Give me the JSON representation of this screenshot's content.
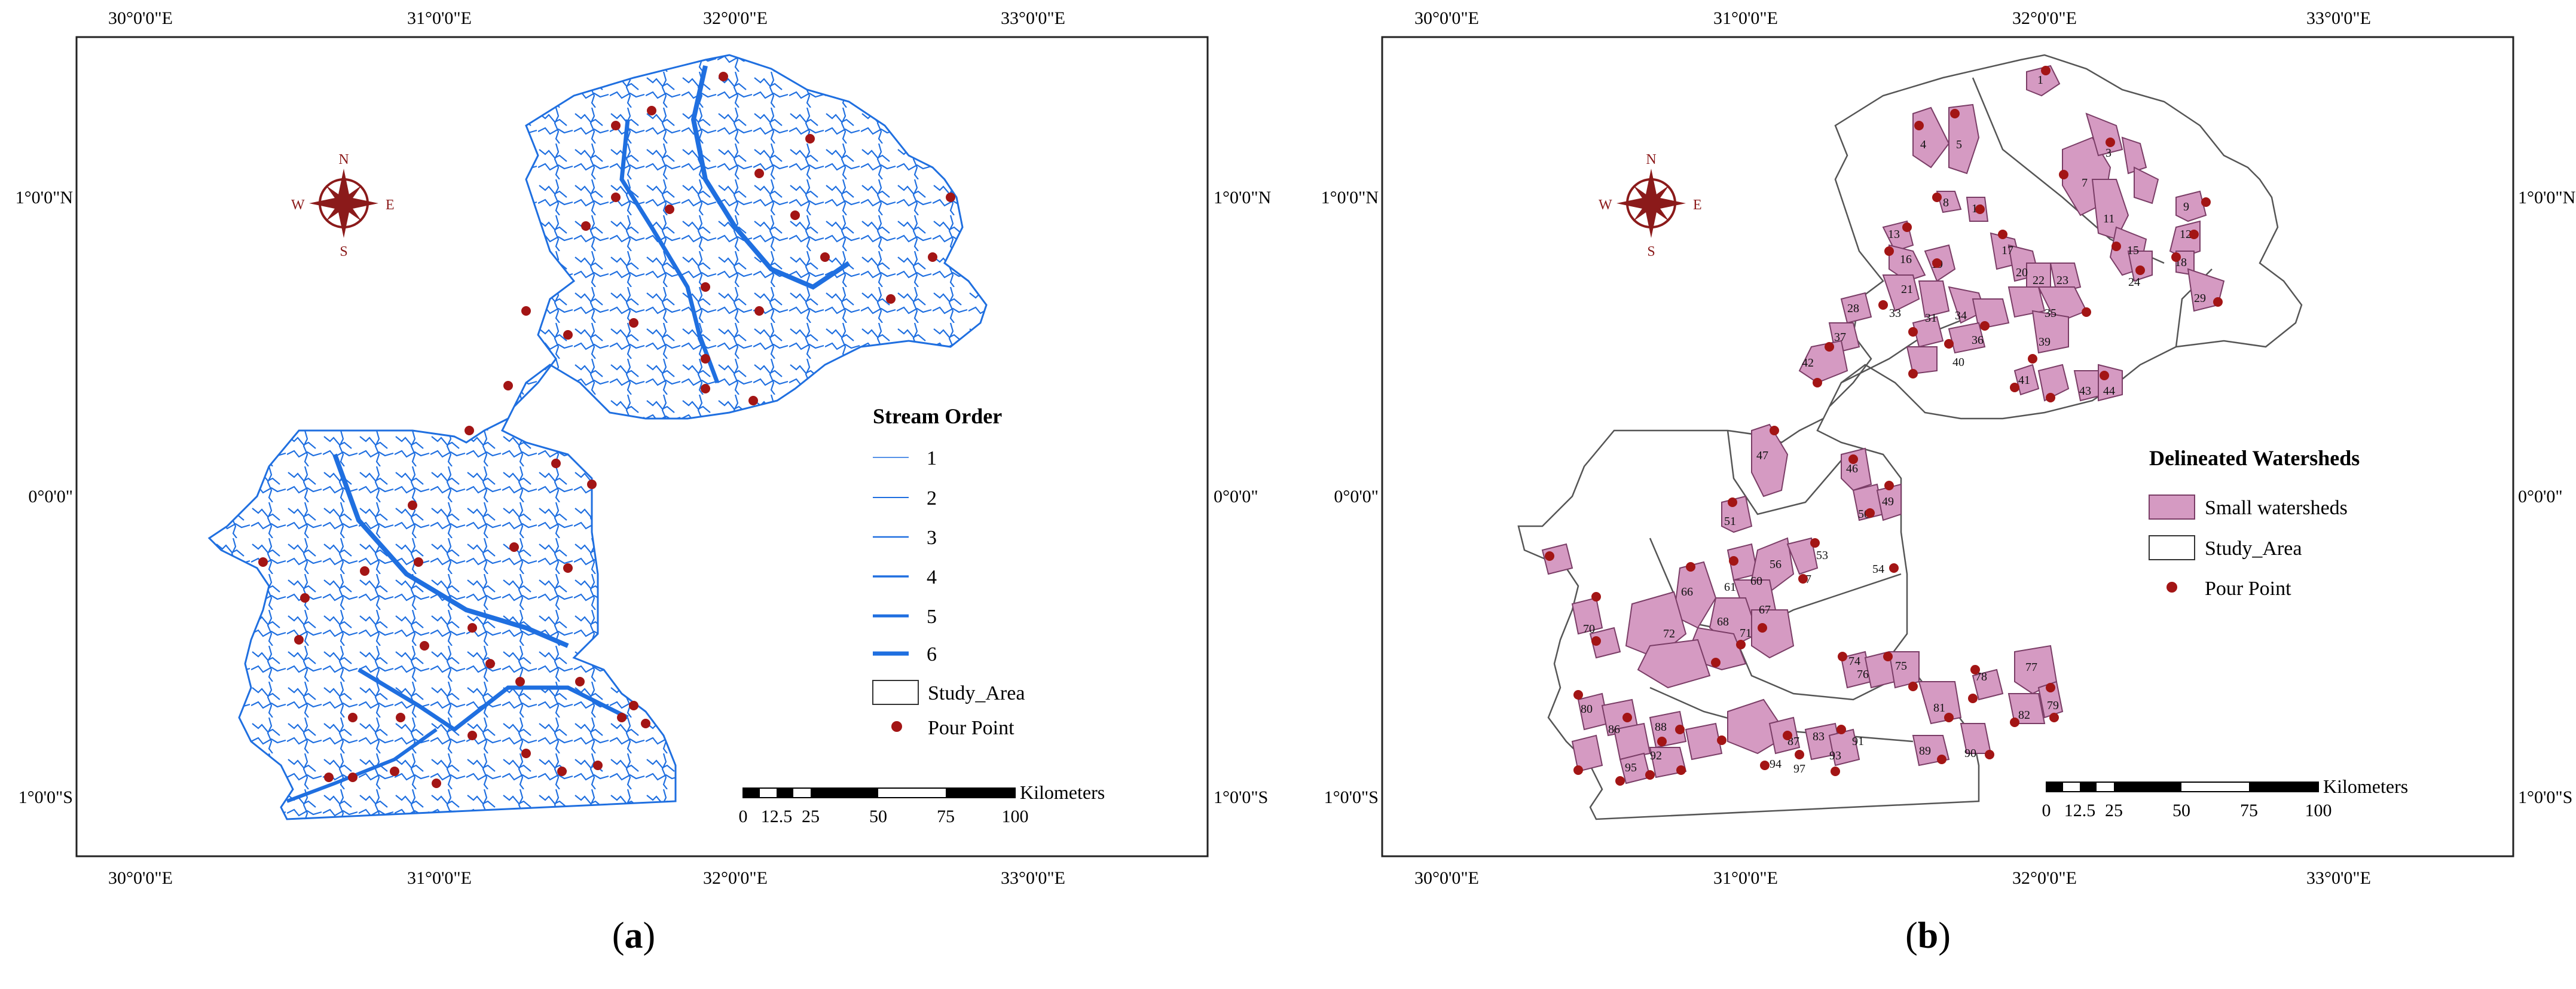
{
  "panel_a": {
    "caption_letter": "a",
    "graticule_top": [
      "30°0'0\"E",
      "31°0'0\"E",
      "32°0'0\"E",
      "33°0'0\"E"
    ],
    "graticule_bottom": [
      "30°0'0\"E",
      "31°0'0\"E",
      "32°0'0\"E",
      "33°0'0\"E"
    ],
    "graticule_left": [
      "1°0'0\"N",
      "0°0'0\"",
      "1°0'0\"S"
    ],
    "graticule_right": [
      "1°0'0\"N",
      "0°0'0\"",
      "1°0'0\"S"
    ],
    "legend": {
      "title": "Stream Order",
      "items": [
        "1",
        "2",
        "3",
        "4",
        "5",
        "6",
        "Study_Area",
        "Pour Point"
      ],
      "stream_color": "#1f6fe0"
    },
    "scale_bar": {
      "ticks": [
        "0",
        "12.5",
        "25",
        "50",
        "75",
        "100"
      ],
      "unit": "Kilometers"
    },
    "compass": {
      "n": "N",
      "s": "S",
      "e": "E",
      "w": "W"
    }
  },
  "panel_b": {
    "caption_letter": "b",
    "graticule_top": [
      "30°0'0\"E",
      "31°0'0\"E",
      "32°0'0\"E",
      "33°0'0\"E"
    ],
    "graticule_bottom": [
      "30°0'0\"E",
      "31°0'0\"E",
      "32°0'0\"E",
      "33°0'0\"E"
    ],
    "graticule_left": [
      "1°0'0\"N",
      "0°0'0\"",
      "1°0'0\"S"
    ],
    "graticule_right": [
      "1°0'0\"N",
      "0°0'0\"",
      "1°0'0\"S"
    ],
    "legend": {
      "title": "Delineated Watersheds",
      "items": [
        "Small watersheds",
        "Study_Area",
        "Pour Point"
      ],
      "watershed_color": "#d59ac2"
    },
    "scale_bar": {
      "ticks": [
        "0",
        "12.5",
        "25",
        "50",
        "75",
        "100"
      ],
      "unit": "Kilometers"
    },
    "compass": {
      "n": "N",
      "s": "S",
      "e": "E",
      "w": "W"
    },
    "watershed_ids": [
      "1",
      "3",
      "4",
      "5",
      "7",
      "8",
      "9",
      "10",
      "11",
      "12",
      "13",
      "15",
      "16",
      "17",
      "18",
      "19",
      "20",
      "21",
      "22",
      "23",
      "24",
      "28",
      "29",
      "31",
      "33",
      "34",
      "35",
      "36",
      "37",
      "39",
      "40",
      "41",
      "42",
      "43",
      "44",
      "46",
      "47",
      "49",
      "50",
      "51",
      "53",
      "54",
      "56",
      "57",
      "60",
      "61",
      "66",
      "67",
      "68",
      "70",
      "71",
      "72",
      "74",
      "75",
      "76",
      "77",
      "78",
      "79",
      "80",
      "81",
      "82",
      "83",
      "86",
      "87",
      "88",
      "89",
      "90",
      "91",
      "92",
      "93",
      "94",
      "95",
      "97"
    ]
  },
  "colors": {
    "pour_point": "#a31515",
    "study_area_outline": "#333333",
    "compass": "#8b1a1a"
  }
}
